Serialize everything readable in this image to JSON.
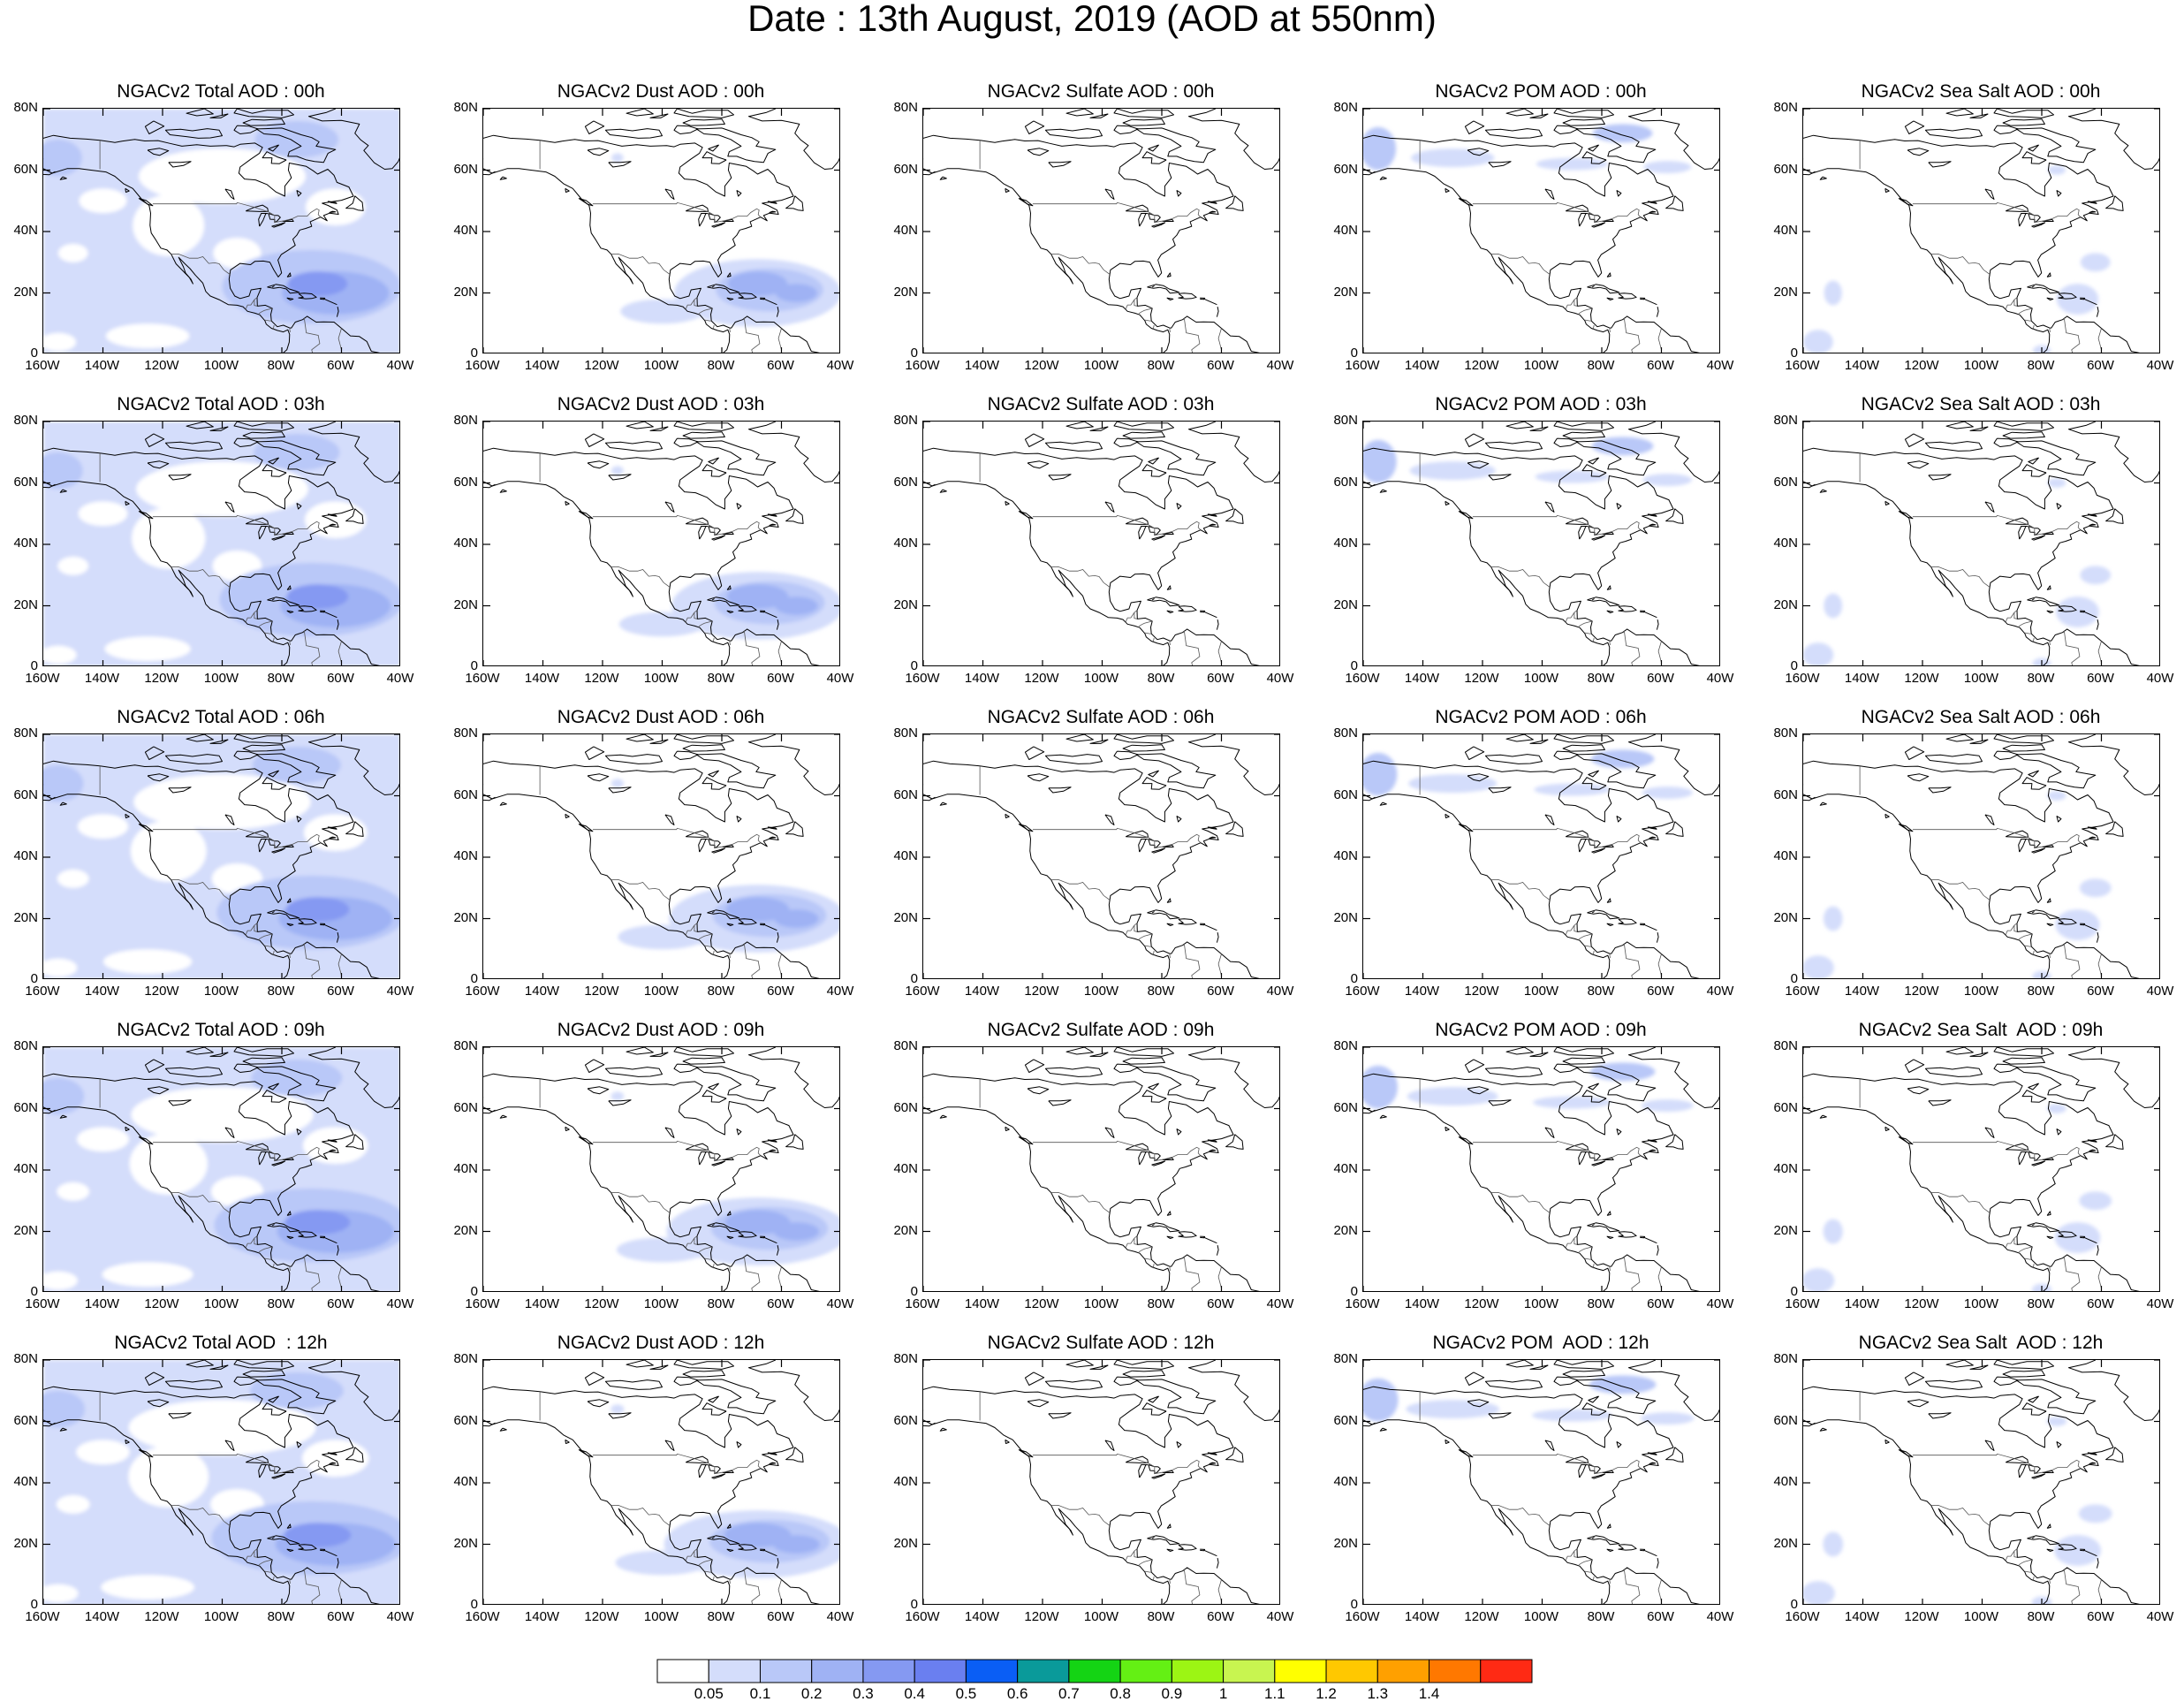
{
  "title": "Date : 13th August, 2019 (AOD at 550nm)",
  "map": {
    "lat_labels": [
      "80N",
      "60N",
      "40N",
      "20N",
      "0"
    ],
    "lat_values": [
      80,
      60,
      40,
      20,
      0
    ],
    "lon_labels": [
      "160W",
      "140W",
      "120W",
      "100W",
      "80W",
      "60W",
      "40W"
    ],
    "lon_values": [
      -160,
      -140,
      -120,
      -100,
      -80,
      -60,
      -40
    ],
    "lat_range": [
      0,
      80
    ],
    "lon_range": [
      -160,
      -40
    ]
  },
  "panels": [
    [
      {
        "title": "NGACv2 Total AOD : 00h",
        "species": "total"
      },
      {
        "title": "NGACv2 Dust AOD : 00h",
        "species": "dust"
      },
      {
        "title": "NGACv2 Sulfate AOD : 00h",
        "species": "sulfate"
      },
      {
        "title": "NGACv2 POM AOD : 00h",
        "species": "pom"
      },
      {
        "title": "NGACv2 Sea Salt AOD : 00h",
        "species": "seasalt"
      }
    ],
    [
      {
        "title": "NGACv2 Total AOD : 03h",
        "species": "total"
      },
      {
        "title": "NGACv2 Dust AOD : 03h",
        "species": "dust"
      },
      {
        "title": "NGACv2 Sulfate AOD : 03h",
        "species": "sulfate"
      },
      {
        "title": "NGACv2 POM AOD : 03h",
        "species": "pom"
      },
      {
        "title": "NGACv2 Sea Salt AOD : 03h",
        "species": "seasalt"
      }
    ],
    [
      {
        "title": "NGACv2 Total AOD : 06h",
        "species": "total"
      },
      {
        "title": "NGACv2 Dust AOD : 06h",
        "species": "dust"
      },
      {
        "title": "NGACv2 Sulfate AOD : 06h",
        "species": "sulfate"
      },
      {
        "title": "NGACv2 POM AOD : 06h",
        "species": "pom"
      },
      {
        "title": "NGACv2 Sea Salt AOD : 06h",
        "species": "seasalt"
      }
    ],
    [
      {
        "title": "NGACv2 Total AOD : 09h",
        "species": "total"
      },
      {
        "title": "NGACv2 Dust AOD : 09h",
        "species": "dust"
      },
      {
        "title": "NGACv2 Sulfate AOD : 09h",
        "species": "sulfate"
      },
      {
        "title": "NGACv2 POM AOD : 09h",
        "species": "pom"
      },
      {
        "title": "NGACv2 Sea Salt  AOD : 09h",
        "species": "seasalt"
      }
    ],
    [
      {
        "title": "NGACv2 Total AOD  : 12h",
        "species": "total"
      },
      {
        "title": "NGACv2 Dust AOD : 12h",
        "species": "dust"
      },
      {
        "title": "NGACv2 Sulfate AOD : 12h",
        "species": "sulfate"
      },
      {
        "title": "NGACv2 POM  AOD : 12h",
        "species": "pom"
      },
      {
        "title": "NGACv2 Sea Salt  AOD : 12h",
        "species": "seasalt"
      }
    ]
  ],
  "colorbar": {
    "labels": [
      "0.05",
      "0.1",
      "0.2",
      "0.3",
      "0.4",
      "0.5",
      "0.6",
      "0.7",
      "0.8",
      "0.9",
      "1",
      "1.1",
      "1.2",
      "1.3",
      "1.4"
    ],
    "colors": [
      "#ffffff",
      "#d4ddfb",
      "#b9c8f8",
      "#9fb2f4",
      "#8599f2",
      "#6a7ff0",
      "#0a5ef5",
      "#0a9a9a",
      "#14d414",
      "#64f014",
      "#9cf514",
      "#c8f550",
      "#ffff00",
      "#ffc800",
      "#ffa000",
      "#ff7800",
      "#ff2a14"
    ]
  }
}
